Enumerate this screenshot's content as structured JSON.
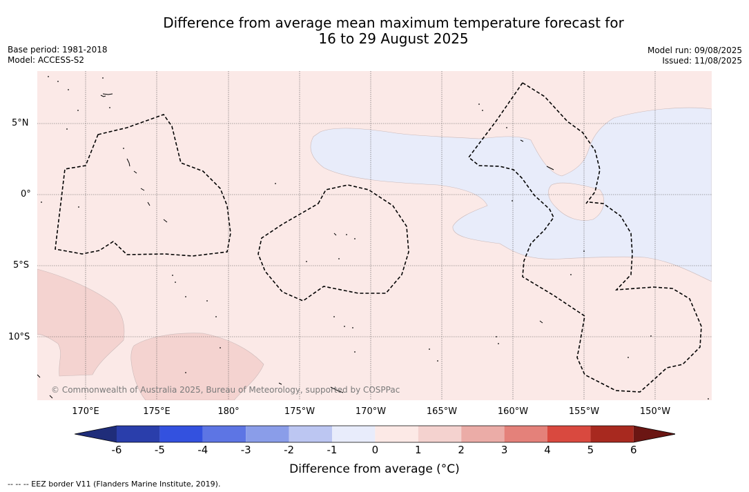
{
  "title": {
    "line1": "Difference from average mean maximum temperature forecast for",
    "line2": "16 to 29 August 2025"
  },
  "meta": {
    "base_period": "Base period: 1981-2018",
    "model": "Model: ACCESS-S2",
    "model_run": "Model run: 09/08/2025",
    "issued": "Issued: 11/08/2025"
  },
  "map": {
    "lat_labels": [
      "5°N",
      "0°",
      "5°S",
      "10°S"
    ],
    "lon_labels": [
      "170°E",
      "175°E",
      "180°",
      "175°W",
      "170°W",
      "165°W",
      "160°W",
      "155°W",
      "150°W"
    ],
    "copyright": "© Commonwealth of Australia 2025, Bureau of Meteorology, supported by COSPPac",
    "colors": {
      "background_anomaly_0_1": "#fbe9e7",
      "anomaly_1_2": "#f4d3d0",
      "anomaly_minus1_0": "#e8ecfa",
      "eez_line": "#000000"
    }
  },
  "colorbar": {
    "ticks": [
      "-6",
      "-5",
      "-4",
      "-3",
      "-2",
      "-1",
      "0",
      "1",
      "2",
      "3",
      "4",
      "5",
      "6"
    ],
    "colors": [
      "#1f2d7a",
      "#2a3eab",
      "#3351df",
      "#5d75e4",
      "#8a9de9",
      "#bcc6f2",
      "#e8ecfb",
      "#fce9e6",
      "#f4d2cf",
      "#ebaca7",
      "#e4817a",
      "#d9493f",
      "#a8291f",
      "#6b1613"
    ],
    "label": "Difference from average (°C)"
  },
  "footer": "--  --  -- EEZ border V11 (Flanders Marine Institute, 2019)."
}
